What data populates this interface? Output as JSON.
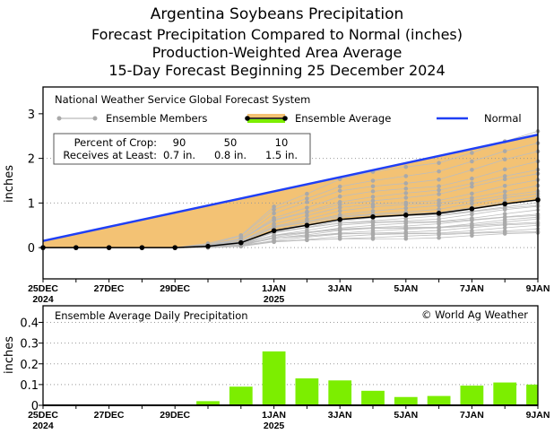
{
  "titles": [
    "Argentina Soybeans Precipitation",
    "Forecast Precipitation Compared to Normal (inches)",
    "Production-Weighted Area Average",
    "15-Day Forecast Beginning 25 December 2024"
  ],
  "colors": {
    "normal": "#1f3ff5",
    "fill": "#f3c274",
    "member": "#a9a9a9",
    "average": "#000000",
    "bar": "#7cee00"
  },
  "chart_data": [
    {
      "type": "line",
      "ylabel": "inches",
      "ylim": [
        -0.7,
        3.6
      ],
      "yticks": [
        "0",
        "1",
        "2",
        "3"
      ],
      "ytick_values": [
        0,
        1,
        2,
        3
      ],
      "grid_values": [
        0,
        1,
        2
      ],
      "x_days": 15,
      "xticks": [
        {
          "day": 0,
          "label": "25DEC",
          "sub": "2024"
        },
        {
          "day": 2,
          "label": "27DEC",
          "sub": ""
        },
        {
          "day": 4,
          "label": "29DEC",
          "sub": ""
        },
        {
          "day": 7,
          "label": "1JAN",
          "sub": "2025"
        },
        {
          "day": 9,
          "label": "3JAN",
          "sub": ""
        },
        {
          "day": 11,
          "label": "5JAN",
          "sub": ""
        },
        {
          "day": 13,
          "label": "7JAN",
          "sub": ""
        },
        {
          "day": 15,
          "label": "9JAN",
          "sub": ""
        }
      ],
      "legend": {
        "source": "National Weather Service Global Forecast System",
        "members": "Ensemble Members",
        "average": "Ensemble Average",
        "normal": "Normal"
      },
      "crop_table": {
        "row1_label": "Percent of Crop:",
        "row2_label": "Receives at Least:",
        "percent": [
          "90",
          "50",
          "10"
        ],
        "amount": [
          "0.7 in.",
          "0.8 in.",
          "1.5 in."
        ]
      },
      "normal": {
        "start": 0.15,
        "end": 2.53
      },
      "ensemble_average": [
        0,
        0,
        0,
        0,
        0,
        0.03,
        0.11,
        0.38,
        0.5,
        0.63,
        0.69,
        0.73,
        0.77,
        0.87,
        0.98,
        1.07
      ],
      "ensemble_member_scales": [
        0.3,
        0.35,
        0.4,
        0.45,
        0.5,
        0.55,
        0.6,
        0.62,
        0.68,
        0.72,
        0.78,
        0.85,
        0.9,
        0.95,
        1.05,
        1.12,
        1.2,
        1.3,
        1.4,
        1.55,
        1.65,
        1.8,
        2.0,
        2.2,
        2.45
      ]
    },
    {
      "type": "bar",
      "title": "Ensemble Average Daily Precipitation",
      "credit": "© World Ag Weather",
      "ylabel": "inches",
      "ylim": [
        0,
        0.48
      ],
      "yticks": [
        "0",
        "0.1",
        "0.2",
        "0.3",
        "0.4"
      ],
      "ytick_values": [
        0,
        0.1,
        0.2,
        0.3,
        0.4
      ],
      "values": [
        0,
        0,
        0,
        0,
        0,
        0.02,
        0.09,
        0.26,
        0.13,
        0.12,
        0.07,
        0.04,
        0.045,
        0.095,
        0.11,
        0.1
      ]
    }
  ]
}
